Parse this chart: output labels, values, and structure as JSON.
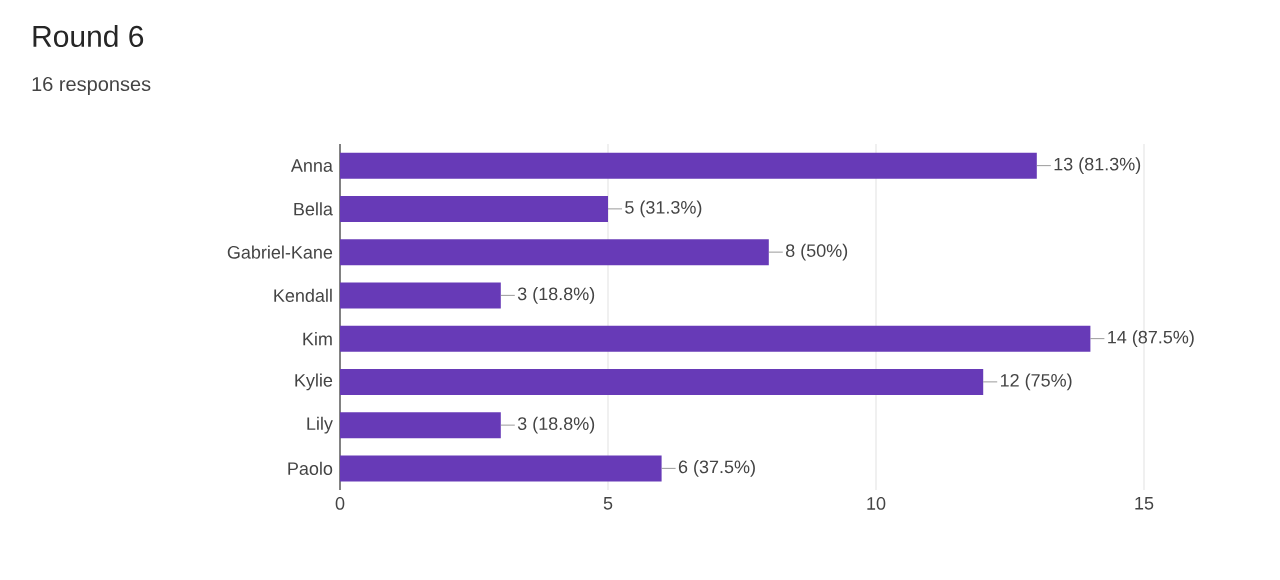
{
  "chart_data": {
    "type": "bar",
    "orientation": "horizontal",
    "title": "Round 6",
    "subtitle": "16 responses",
    "categories": [
      "Anna",
      "Bella",
      "Gabriel-Kane",
      "Kendall",
      "Kim",
      "Kylie",
      "Lily",
      "Paolo"
    ],
    "values": [
      13,
      5,
      8,
      3,
      14,
      12,
      3,
      6
    ],
    "value_labels": [
      "13 (81.3%)",
      "5 (31.3%)",
      "8 (50%)",
      "3 (18.8%)",
      "14 (87.5%)",
      "12 (75%)",
      "3 (18.8%)",
      "6 (37.5%)"
    ],
    "color": "#673ab7",
    "xlim": [
      0,
      15
    ],
    "xticks": [
      0,
      5,
      10,
      15
    ],
    "grid": "x"
  }
}
